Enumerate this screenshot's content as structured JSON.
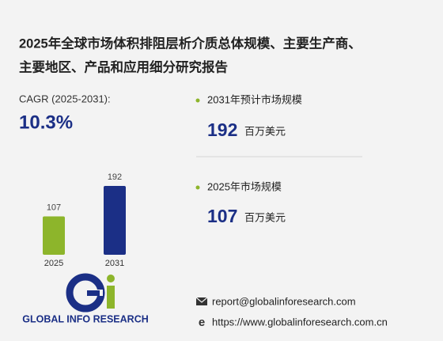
{
  "header": {
    "title_line1": "2025年全球市场体积排阻层析介质总体规模、主要生产商、",
    "title_line2": "主要地区、产品和应用细分研究报告"
  },
  "cagr": {
    "label": "CAGR (2025-2031):",
    "value": "10.3%"
  },
  "stats": [
    {
      "label": "2031年预计市场规模",
      "value": "192",
      "unit": "百万美元"
    },
    {
      "label": "2025年市场规模",
      "value": "107",
      "unit": "百万美元"
    }
  ],
  "chart_data": {
    "type": "bar",
    "categories": [
      "2025",
      "2031"
    ],
    "values": [
      107,
      192
    ],
    "colors": [
      "#8db52b",
      "#1b2f86"
    ]
  },
  "logo": {
    "text": "GLOBAL INFO RESEARCH"
  },
  "contact": {
    "email": "report@globalinforesearch.com",
    "website": "https://www.globalinforesearch.com.cn"
  }
}
